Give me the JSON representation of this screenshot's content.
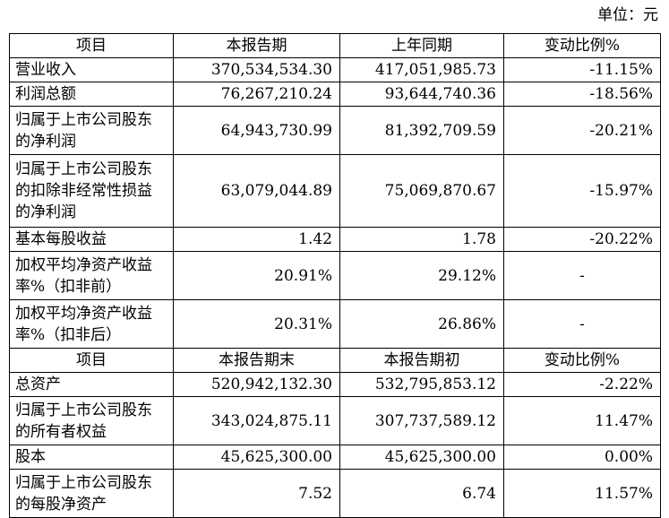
{
  "unit_label": "单位：元",
  "header1": [
    "项目",
    "本报告期",
    "上年同期",
    "变动比例%"
  ],
  "header2": [
    "项目",
    "本报告期末",
    "本报告期初",
    "变动比例%"
  ],
  "rows_period": [
    {
      "label": "营业收入",
      "current": "370,534,534.30",
      "previous": "417,051,985.73",
      "change": "-11.15%"
    },
    {
      "label": "利润总额",
      "current": "76,267,210.24",
      "previous": "93,644,740.36",
      "change": "-18.56%"
    },
    {
      "label": "归属于上市公司股东的净利润",
      "current": "64,943,730.99",
      "previous": "81,392,709.59",
      "change": "-20.21%"
    },
    {
      "label": "归属于上市公司股东的扣除非经常性损益的净利润",
      "current": "63,079,044.89",
      "previous": "75,069,870.67",
      "change": "-15.97%"
    },
    {
      "label": "基本每股收益",
      "current": "1.42",
      "previous": "1.78",
      "change": "-20.22%"
    },
    {
      "label": "加权平均净资产收益率%（扣非前）",
      "current": "20.91%",
      "previous": "29.12%",
      "change": "-"
    },
    {
      "label": "加权平均净资产收益率%（扣非后）",
      "current": "20.31%",
      "previous": "26.86%",
      "change": "-"
    }
  ],
  "rows_balance": [
    {
      "label": "总资产",
      "end": "520,942,132.30",
      "begin": "532,795,853.12",
      "change": "-2.22%"
    },
    {
      "label": "归属于上市公司股东的所有者权益",
      "end": "343,024,875.11",
      "begin": "307,737,589.12",
      "change": "11.47%"
    },
    {
      "label": "股本",
      "end": "45,625,300.00",
      "begin": "45,625,300.00",
      "change": "0.00%"
    },
    {
      "label": "归属于上市公司股东的每股净资产",
      "end": "7.52",
      "begin": "6.74",
      "change": "11.57%"
    }
  ]
}
